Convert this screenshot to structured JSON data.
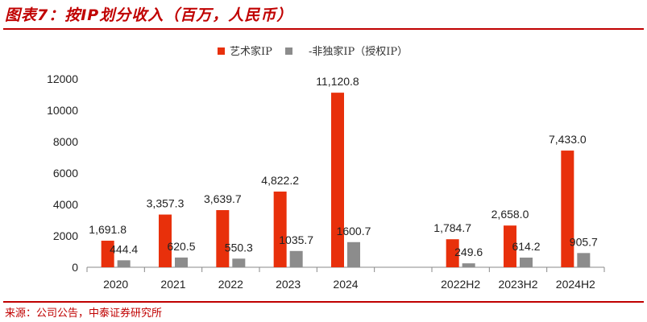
{
  "title": "图表7：按IP划分收入（百万，人民币）",
  "source": "来源：公司公告，中泰证券研究所",
  "colors": {
    "accent": "#c00000",
    "series1": "#e8300b",
    "series2": "#8c8c8c"
  },
  "chart_data": {
    "type": "bar",
    "categories": [
      "2020",
      "2021",
      "2022",
      "2023",
      "2024",
      "",
      "2022H2",
      "2023H2",
      "2024H2"
    ],
    "series": [
      {
        "name": "艺术家IP",
        "color": "#e8300b",
        "values": [
          1691.8,
          3357.3,
          3639.7,
          4822.2,
          11120.8,
          null,
          1784.7,
          2658.0,
          7433.0
        ],
        "labels": [
          "1,691.8",
          "3,357.3",
          "3,639.7",
          "4,822.2",
          "11,120.8",
          "",
          "1,784.7",
          "2,658.0",
          "7,433.0"
        ]
      },
      {
        "name": "-非独家IP（授权IP）",
        "color": "#8c8c8c",
        "values": [
          444.4,
          620.5,
          550.3,
          1035.7,
          1600.7,
          null,
          249.6,
          614.2,
          905.7
        ],
        "labels": [
          "444.4",
          "620.5",
          "550.3",
          "1035.7",
          "1600.7",
          "",
          "249.6",
          "614.2",
          "905.7"
        ]
      }
    ],
    "yticks": [
      "0",
      "2000",
      "4000",
      "6000",
      "8000",
      "10000",
      "12000"
    ],
    "ylim": [
      0,
      12000
    ],
    "legend_position": "top-center",
    "grid": false
  }
}
